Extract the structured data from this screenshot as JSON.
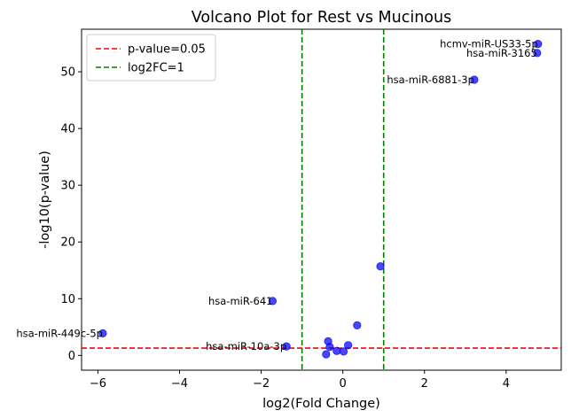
{
  "chart_data": {
    "type": "scatter",
    "title": "Volcano Plot for Rest vs Mucinous",
    "xlabel": "log2(Fold Change)",
    "ylabel": "-log10(p-value)",
    "xlim": [
      -6.4,
      5.35
    ],
    "ylim": [
      -2.6,
      57.5
    ],
    "xticks": [
      -6,
      -4,
      -2,
      0,
      2,
      4
    ],
    "yticks": [
      0,
      10,
      20,
      30,
      40,
      50
    ],
    "grid": false,
    "legend_position": "top-left",
    "point_color": "#0000ff",
    "points": [
      {
        "x": 4.78,
        "y": 54.9,
        "label": "hcmv-miR-US33-5p"
      },
      {
        "x": 4.76,
        "y": 53.3,
        "label": "hsa-miR-3165"
      },
      {
        "x": 3.22,
        "y": 48.6,
        "label": "hsa-miR-6881-3p"
      },
      {
        "x": 0.92,
        "y": 15.7,
        "label": ""
      },
      {
        "x": -1.72,
        "y": 9.6,
        "label": "hsa-miR-641"
      },
      {
        "x": -5.88,
        "y": 3.9,
        "label": "hsa-miR-449c-5p"
      },
      {
        "x": -1.38,
        "y": 1.6,
        "label": "hsa-miR-10a-3p"
      },
      {
        "x": 0.35,
        "y": 5.3,
        "label": ""
      },
      {
        "x": -0.36,
        "y": 2.5,
        "label": ""
      },
      {
        "x": -0.32,
        "y": 1.5,
        "label": ""
      },
      {
        "x": -0.15,
        "y": 0.8,
        "label": ""
      },
      {
        "x": 0.02,
        "y": 0.7,
        "label": ""
      },
      {
        "x": 0.13,
        "y": 1.8,
        "label": ""
      },
      {
        "x": -0.41,
        "y": 0.2,
        "label": ""
      }
    ],
    "threshold_lines": [
      {
        "name": "p-value=0.05",
        "orientation": "horizontal",
        "value": 1.3,
        "color": "#ff0000"
      },
      {
        "name": "log2FC=1",
        "orientation": "vertical",
        "values": [
          -1,
          1
        ],
        "color": "#008000"
      }
    ]
  }
}
